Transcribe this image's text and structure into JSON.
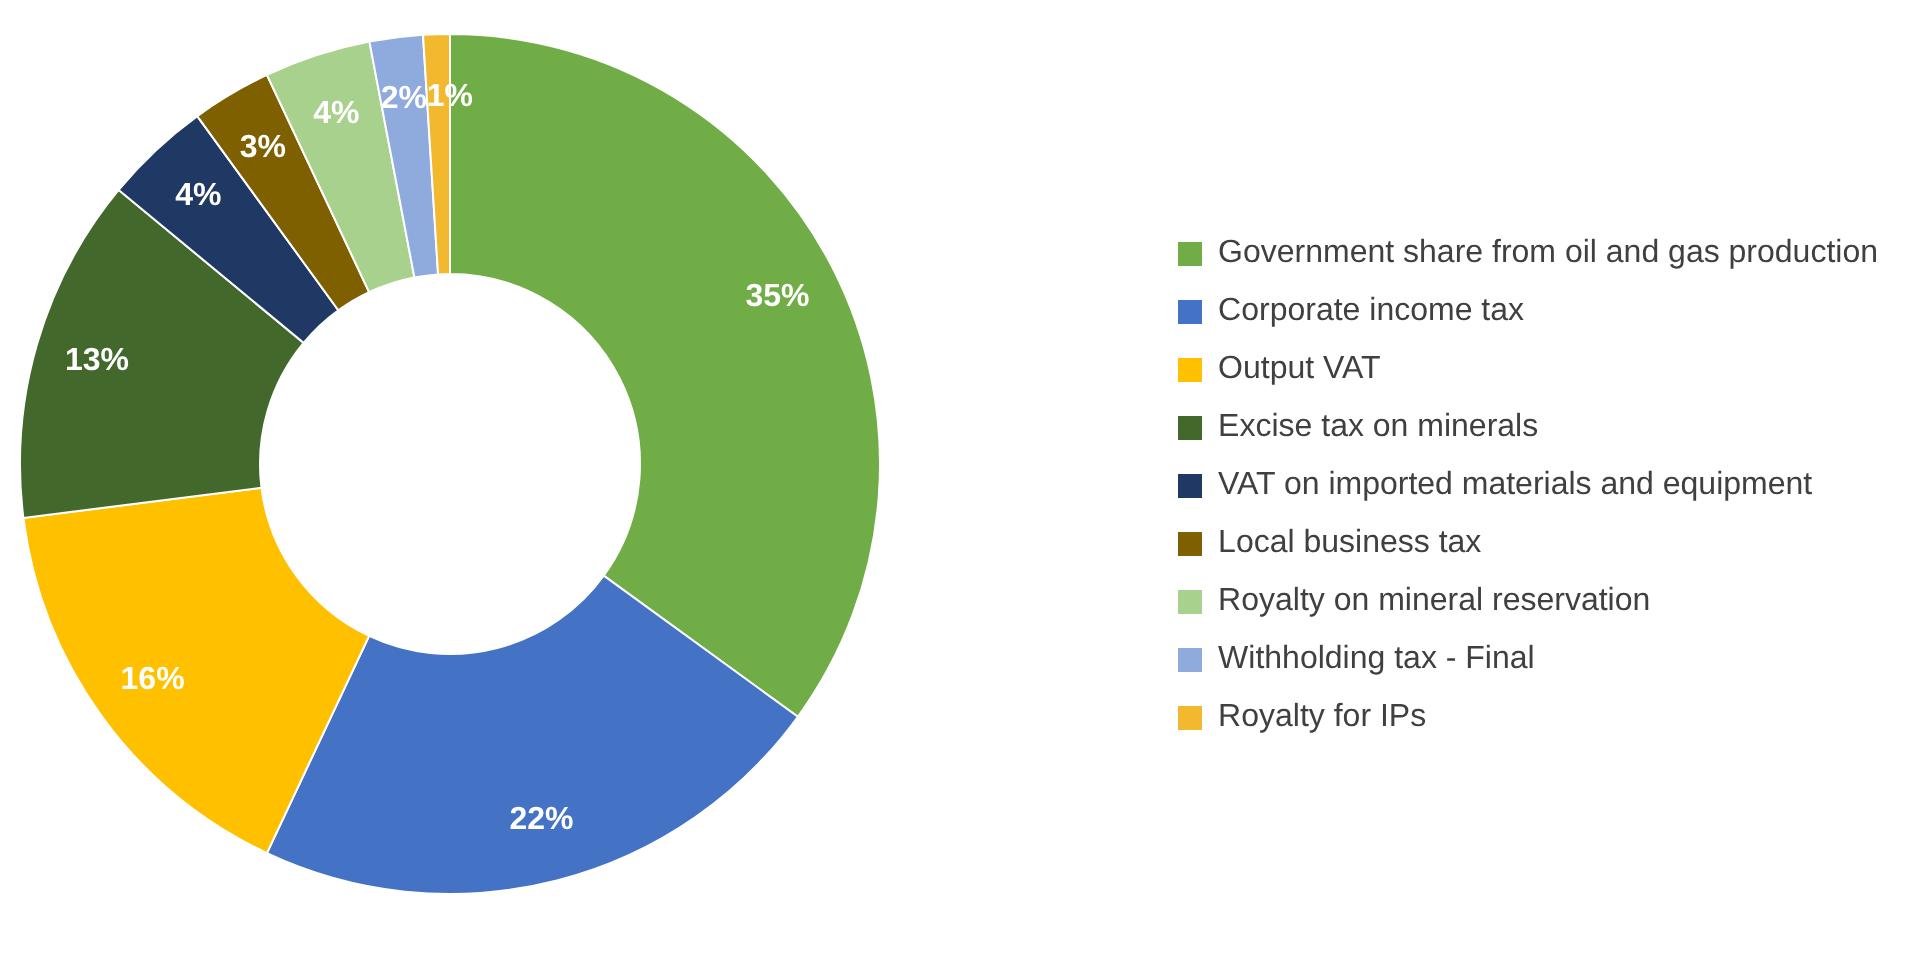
{
  "chart_data": {
    "type": "donut",
    "categories": [
      "Government share from oil and gas production",
      "Corporate income tax",
      "Output VAT",
      "Excise tax on minerals",
      "VAT on imported materials and equipment",
      "Local business tax",
      "Royalty on mineral reservation",
      "Withholding tax - Final",
      "Royalty for IPs"
    ],
    "values": [
      35,
      22,
      16,
      13,
      4,
      3,
      4,
      2,
      1
    ],
    "value_labels": [
      "35%",
      "22%",
      "16%",
      "13%",
      "4%",
      "3%",
      "4%",
      "2%",
      "1%"
    ],
    "colors": [
      "#70ad47",
      "#4472c4",
      "#ffc000",
      "#43682b",
      "#203864",
      "#7f6000",
      "#a9d18e",
      "#8faadc",
      "#f2b92f"
    ],
    "legend": "right"
  }
}
